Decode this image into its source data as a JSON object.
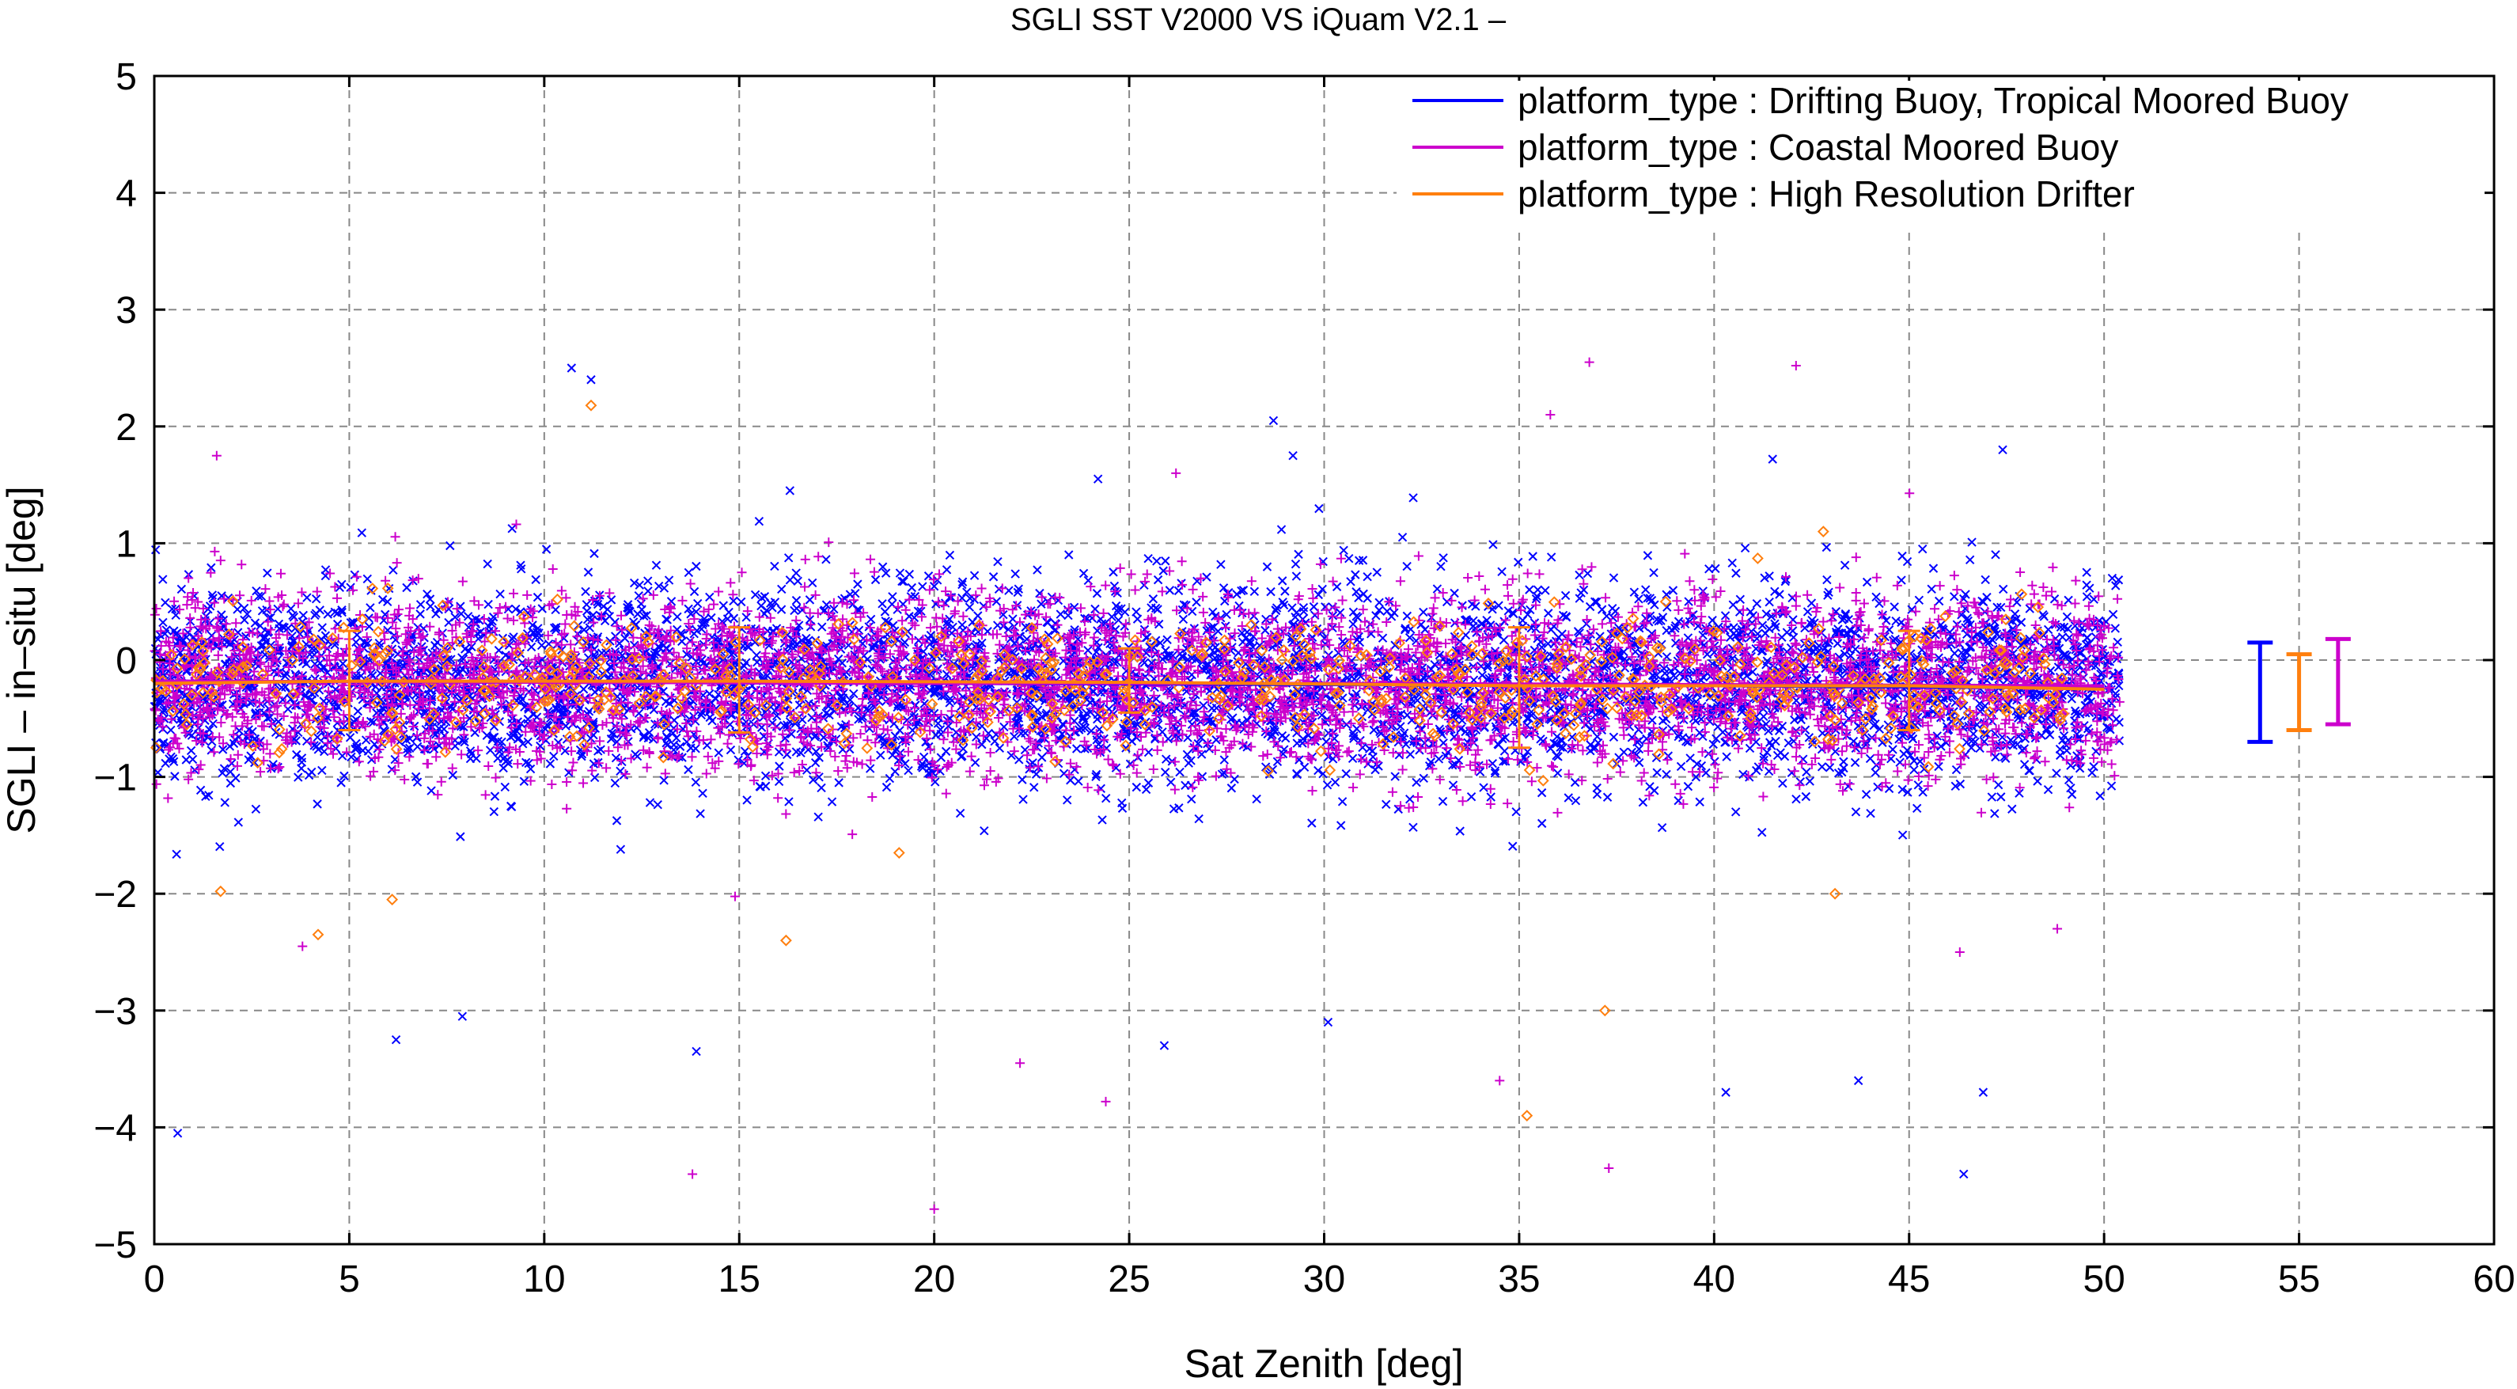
{
  "chart_data": {
    "type": "scatter",
    "title": "SGLI SST V2000 VS iQuam V2.1  –",
    "xlabel": "Sat Zenith [deg]",
    "ylabel": "SGLI – in–situ [deg]",
    "xlim": [
      0,
      60
    ],
    "ylim": [
      -5,
      5
    ],
    "x_ticks": [
      0,
      5,
      10,
      15,
      20,
      25,
      30,
      35,
      40,
      45,
      50,
      55,
      60
    ],
    "y_ticks": [
      -5,
      -4,
      -3,
      -2,
      -1,
      0,
      1,
      2,
      3,
      4,
      5
    ],
    "y_tick_labels": [
      "−5",
      "−4",
      "−3",
      "−2",
      "−1",
      "0",
      "1",
      "2",
      "3",
      "4",
      "5"
    ],
    "grid": true,
    "legend_position": "top-right",
    "series": [
      {
        "name": "platform_type : Drifting Buoy, Tropical Moored Buoy",
        "color": "#0000ff",
        "marker": "x",
        "scatter_x_range": [
          0,
          50.4
        ],
        "mean_line": {
          "x": [
            0,
            10,
            20,
            30,
            40,
            50
          ],
          "y": [
            -0.18,
            -0.19,
            -0.2,
            -0.21,
            -0.22,
            -0.24
          ]
        },
        "overall_errorbar": {
          "x": 54,
          "mean": -0.25,
          "upper": 0.15,
          "lower": -0.7
        },
        "outliers": [
          [
            0.6,
            -4.05
          ],
          [
            10.7,
            2.5
          ],
          [
            11.2,
            2.4
          ],
          [
            28.7,
            2.05
          ],
          [
            29.2,
            1.75
          ],
          [
            46.4,
            -4.4
          ],
          [
            47.4,
            1.8
          ],
          [
            41.5,
            1.72
          ],
          [
            16.3,
            1.45
          ],
          [
            24.2,
            1.55
          ],
          [
            13.9,
            -3.35
          ],
          [
            46.9,
            -3.7
          ],
          [
            43.7,
            -3.6
          ],
          [
            25.9,
            -3.3
          ],
          [
            6.2,
            -3.25
          ],
          [
            7.9,
            -3.05
          ],
          [
            30.1,
            -3.1
          ],
          [
            40.3,
            -3.7
          ]
        ]
      },
      {
        "name": "platform_type : Coastal Moored Buoy",
        "color": "#cc00cc",
        "marker": "+",
        "scatter_x_range": [
          0,
          50.4
        ],
        "mean_line": {
          "x": [
            0,
            10,
            20,
            30,
            40,
            50
          ],
          "y": [
            -0.18,
            -0.19,
            -0.2,
            -0.2,
            -0.21,
            -0.22
          ]
        },
        "overall_errorbar": {
          "x": 56,
          "mean": -0.18,
          "upper": 0.18,
          "lower": -0.55
        },
        "outliers": [
          [
            20,
            -4.7
          ],
          [
            13.8,
            -4.4
          ],
          [
            37.3,
            -4.35
          ],
          [
            36.8,
            2.55
          ],
          [
            35.8,
            2.1
          ],
          [
            42.1,
            2.52
          ],
          [
            1.6,
            1.75
          ],
          [
            26.2,
            1.6
          ],
          [
            34.5,
            -3.6
          ],
          [
            24.4,
            -3.78
          ],
          [
            22.2,
            -3.45
          ],
          [
            46.3,
            -2.5
          ],
          [
            48.8,
            -2.3
          ],
          [
            3.8,
            -2.45
          ]
        ]
      },
      {
        "name": "platform_type : High Resolution Drifter",
        "color": "#ff7f0e",
        "marker": "diamond",
        "scatter_x_range": [
          0,
          49
        ],
        "mean_line": {
          "x": [
            0,
            5,
            15,
            25,
            35,
            45,
            50
          ],
          "y": [
            -0.2,
            -0.18,
            -0.18,
            -0.19,
            -0.22,
            -0.22,
            -0.25
          ]
        },
        "binned_errorbars": [
          {
            "x": 5,
            "mean": -0.18,
            "upper": 0.25,
            "lower": -0.6
          },
          {
            "x": 15,
            "mean": -0.19,
            "upper": 0.28,
            "lower": -0.62
          },
          {
            "x": 25,
            "mean": -0.19,
            "upper": 0.1,
            "lower": -0.45
          },
          {
            "x": 35,
            "mean": -0.23,
            "upper": 0.28,
            "lower": -0.75
          },
          {
            "x": 45,
            "mean": -0.22,
            "upper": 0.25,
            "lower": -0.6
          }
        ],
        "overall_errorbar": {
          "x": 55,
          "mean": -0.22,
          "upper": 0.05,
          "lower": -0.6
        },
        "outliers": [
          [
            11.2,
            2.18
          ],
          [
            35.2,
            -3.9
          ],
          [
            37.2,
            -3.0
          ],
          [
            4.2,
            -2.35
          ],
          [
            6.1,
            -2.05
          ],
          [
            1.7,
            -1.98
          ],
          [
            16.2,
            -2.4
          ],
          [
            19.1,
            -1.65
          ],
          [
            42.8,
            1.1
          ],
          [
            43.1,
            -2.0
          ]
        ]
      }
    ]
  }
}
